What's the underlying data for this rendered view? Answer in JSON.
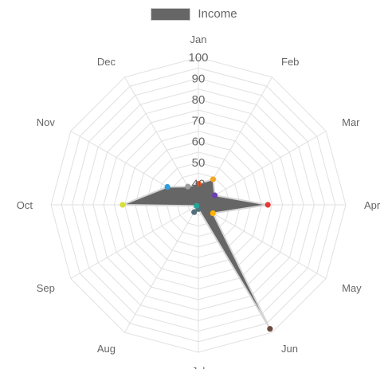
{
  "chart_data": {
    "type": "radar",
    "categories": [
      "Jan",
      "Feb",
      "Mar",
      "Apr",
      "May",
      "Jun",
      "Jul",
      "Aug",
      "Sep",
      "Oct",
      "Nov",
      "Dec"
    ],
    "series": [
      {
        "name": "Income",
        "values": [
          40,
          44,
          39,
          63,
          38,
          98,
          32,
          34,
          31,
          66,
          47,
          40
        ],
        "color": "#666666"
      }
    ],
    "point_colors": [
      "#e8501f",
      "#f5a623",
      "#6a3fb2",
      "#e53935",
      "#ffb300",
      "#6d4c41",
      "#546e7a",
      "#546e7a",
      "#26a69a",
      "#d4df3a",
      "#2f9ee0",
      "#9e9e9e"
    ],
    "r_ticks": [
      40,
      50,
      60,
      70,
      80,
      90,
      100
    ],
    "rlim": [
      30,
      100
    ],
    "grid": true,
    "legend": "top"
  }
}
